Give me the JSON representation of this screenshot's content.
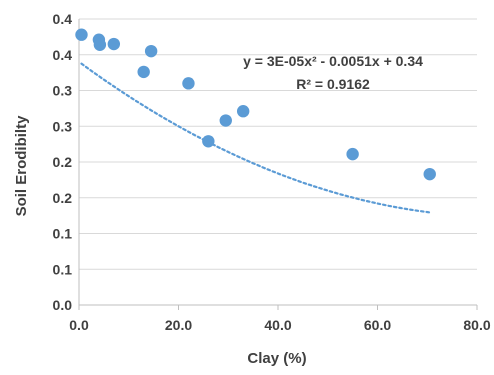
{
  "chart_data": {
    "type": "scatter",
    "xlabel": "Clay (%)",
    "ylabel": "Soil Erodibilty",
    "xlim": [
      0,
      80
    ],
    "ylim": [
      0,
      0.4
    ],
    "x_ticks": [
      "0.0",
      "20.0",
      "40.0",
      "60.0",
      "80.0"
    ],
    "y_tick_values": [
      0,
      0.05,
      0.1,
      0.15,
      0.2,
      0.25,
      0.3,
      0.35,
      0.4
    ],
    "y_ticks": [
      "0.0",
      "0.1",
      "0.1",
      "0.2",
      "0.2",
      "0.3",
      "0.3",
      "0.4",
      "0.4"
    ],
    "grid": "horizontal",
    "marker_color": "#5b9bd5",
    "trendline_color": "#5b9bd5",
    "series": [
      {
        "x": [
          0.5,
          4.0,
          4.2,
          7.0,
          13.0,
          14.5,
          22.0,
          26.0,
          29.5,
          33.0,
          55.0,
          70.5
        ],
        "y": [
          0.378,
          0.371,
          0.364,
          0.365,
          0.326,
          0.355,
          0.31,
          0.229,
          0.258,
          0.271,
          0.211,
          0.183
        ]
      }
    ],
    "trendline": {
      "type": "polynomial",
      "coefficients": [
        3e-05,
        -0.0051,
        0.34
      ]
    },
    "annotations": {
      "equation": "y = 3E-05x² - 0.0051x + 0.34",
      "r_squared": "R² = 0.9162"
    }
  }
}
